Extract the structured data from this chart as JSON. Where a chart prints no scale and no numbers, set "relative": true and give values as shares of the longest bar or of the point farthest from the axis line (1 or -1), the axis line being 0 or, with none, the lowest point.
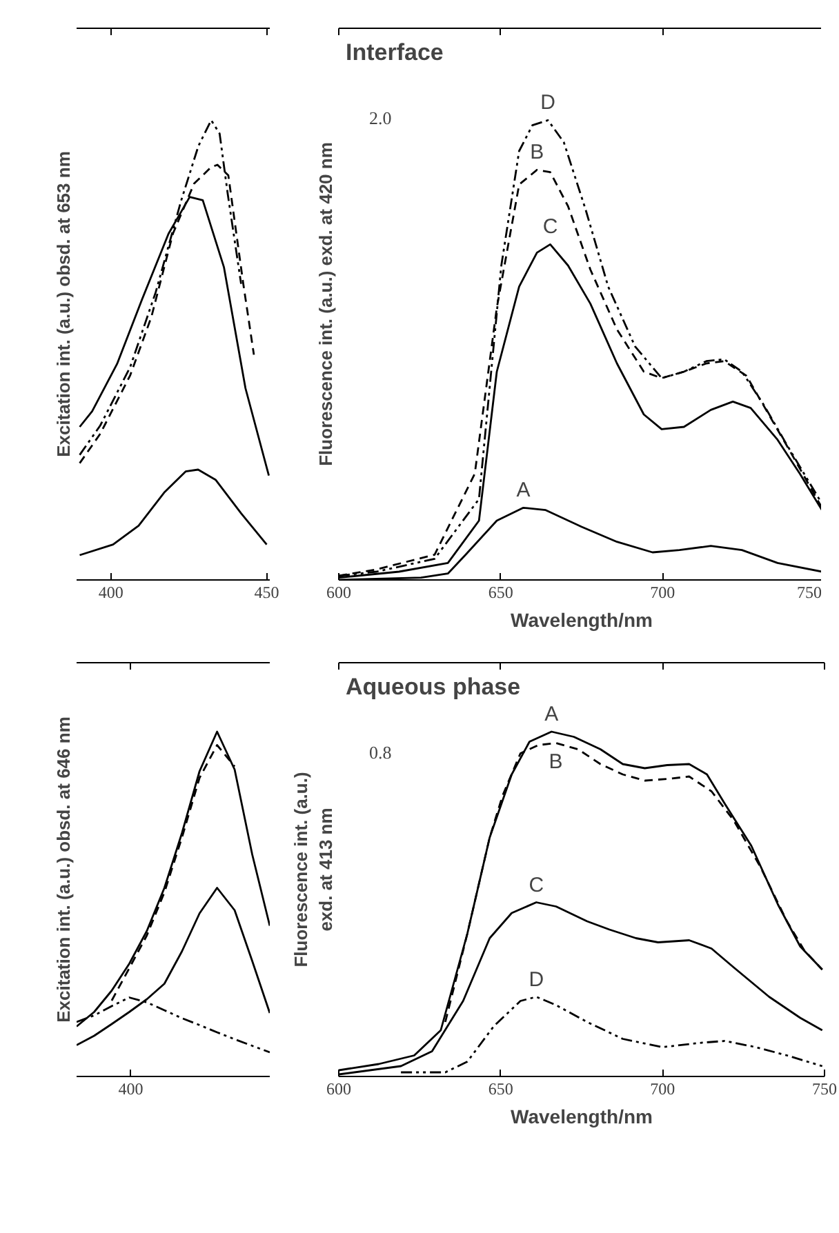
{
  "chart_data": [
    {
      "type": "line",
      "relative": true,
      "ylabel": "Excitation int. (a.u.) obsd. at 653 nm",
      "xlim": [
        389,
        451
      ],
      "xticks": [
        400,
        450
      ],
      "series": [
        {
          "color": "#000000",
          "line_style": "solid",
          "x": [
            390,
            394,
            402,
            410,
            418.5,
            425.3,
            429.5,
            436.3,
            443.2,
            450.7
          ],
          "values": [
            0.333,
            0.367,
            0.47,
            0.61,
            0.753,
            0.833,
            0.826,
            0.68,
            0.417,
            0.227
          ]
        },
        {
          "color": "#000000",
          "line_style": "dashed",
          "x": [
            390,
            396.6,
            406.2,
            413,
            419.9,
            426.7,
            432.2,
            434.2,
            437.7,
            442.5,
            445.9
          ],
          "values": [
            0.254,
            0.318,
            0.445,
            0.572,
            0.753,
            0.862,
            0.898,
            0.903,
            0.88,
            0.644,
            0.49
          ]
        },
        {
          "color": "#000000",
          "line_style": "dashdot",
          "x": [
            390,
            396.6,
            406.2,
            414.4,
            422.6,
            428.1,
            432.2,
            434.9,
            437.5,
            441.8
          ],
          "values": [
            0.272,
            0.336,
            0.463,
            0.626,
            0.826,
            0.944,
            1.0,
            0.971,
            0.84,
            0.644
          ]
        },
        {
          "color": "#000000",
          "line_style": "solid",
          "x": [
            390,
            400.7,
            408.9,
            417.1,
            424,
            428,
            433.6,
            441.8,
            450
          ],
          "values": [
            0.054,
            0.077,
            0.118,
            0.19,
            0.236,
            0.24,
            0.218,
            0.145,
            0.077
          ]
        }
      ]
    },
    {
      "type": "line",
      "relative": true,
      "title": "Interface",
      "xlabel": "Wavelength/nm",
      "ylabel": "Fluorescence int. (a.u.) exd. at 420 nm",
      "xlim": [
        600,
        750
      ],
      "xticks": [
        600,
        650,
        700,
        750
      ],
      "annotations": [
        "2.0"
      ],
      "series": [
        {
          "name": "D",
          "color": "#000000",
          "line_style": "dashdot",
          "x": [
            600,
            611.7,
            629.6,
            643.3,
            650.2,
            655.7,
            659.8,
            664.6,
            669.5,
            676.3,
            683.2,
            691.5,
            699.7,
            706.6,
            713.5,
            719,
            724.5,
            731.4,
            738.2,
            749.2
          ],
          "values": [
            0.009,
            0.018,
            0.046,
            0.176,
            0.684,
            0.933,
            0.989,
            1.0,
            0.952,
            0.804,
            0.638,
            0.508,
            0.439,
            0.453,
            0.476,
            0.48,
            0.453,
            0.379,
            0.296,
            0.166
          ]
        },
        {
          "name": "B",
          "color": "#000000",
          "line_style": "dashed",
          "x": [
            600,
            611.7,
            629.6,
            642,
            648.8,
            655.7,
            661.2,
            665.3,
            670.8,
            677.7,
            685.9,
            694.2,
            699.7,
            706.6,
            713.5,
            719,
            725.9,
            732.7,
            739.6,
            749.2
          ],
          "values": [
            0.009,
            0.023,
            0.055,
            0.231,
            0.592,
            0.86,
            0.892,
            0.887,
            0.813,
            0.675,
            0.545,
            0.453,
            0.439,
            0.453,
            0.471,
            0.476,
            0.444,
            0.361,
            0.277,
            0.157
          ]
        },
        {
          "name": "C",
          "color": "#000000",
          "line_style": "solid",
          "x": [
            600,
            618.6,
            633.7,
            643.3,
            648.8,
            655.7,
            661.2,
            665.3,
            670.8,
            677.7,
            685.9,
            694.2,
            699.7,
            706.6,
            714.9,
            721.7,
            727.2,
            735.5,
            742.4,
            749.2
          ],
          "values": [
            0.005,
            0.018,
            0.037,
            0.129,
            0.453,
            0.638,
            0.712,
            0.73,
            0.684,
            0.601,
            0.471,
            0.36,
            0.328,
            0.333,
            0.37,
            0.388,
            0.374,
            0.305,
            0.231,
            0.152
          ]
        },
        {
          "name": "A",
          "color": "#000000",
          "line_style": "solid",
          "x": [
            600,
            625.4,
            633.7,
            639.2,
            648.8,
            657,
            663.9,
            674.9,
            685.9,
            696.9,
            705.2,
            714.9,
            724.5,
            735.5,
            749.2
          ],
          "values": [
            0,
            0.005,
            0.014,
            0.055,
            0.129,
            0.157,
            0.152,
            0.116,
            0.083,
            0.06,
            0.065,
            0.074,
            0.065,
            0.037,
            0.018
          ]
        }
      ]
    },
    {
      "type": "line",
      "relative": true,
      "ylabel": "Excitation int. (a.u.) obsd. at 646 nm",
      "categories": [
        null,
        null,
        null,
        null,
        null,
        null,
        null,
        null,
        null,
        null,
        null,
        null
      ],
      "annotations": [
        "400"
      ],
      "series": [
        {
          "color": "#000000",
          "line_style": "solid",
          "values": [
            0.145,
            0.187,
            0.249,
            0.327,
            0.422,
            0.547,
            0.706,
            0.885,
            1.0,
            0.89,
            0.644,
            0.437
          ]
        },
        {
          "color": "#000000",
          "line_style": "dashed",
          "values": [
            null,
            null,
            0.22,
            0.314,
            0.409,
            0.534,
            0.693,
            0.866,
            0.961,
            0.899,
            null,
            null
          ]
        },
        {
          "color": "#000000",
          "line_style": "solid",
          "values": [
            0.091,
            0.118,
            0.152,
            0.187,
            0.224,
            0.269,
            0.363,
            0.473,
            0.547,
            0.482,
            0.335,
            0.184
          ]
        },
        {
          "color": "#000000",
          "line_style": "dashdot",
          "values": [
            0.158,
            0.177,
            0.204,
            0.229,
            0.215,
            0.192,
            0.169,
            0.149,
            0.128,
            0.108,
            0.089,
            0.07
          ]
        }
      ]
    },
    {
      "type": "line",
      "relative": true,
      "title": "Aqueous phase",
      "xlabel": "Wavelength/nm",
      "ylabel": "Fluorescence int. (a.u.)\nexd. at 413 nm",
      "xlim": [
        600,
        750
      ],
      "xticks": [
        600,
        650,
        700,
        750
      ],
      "annotations": [
        "0.8"
      ],
      "series": [
        {
          "name": "A",
          "color": "#000000",
          "line_style": "solid",
          "x": [
            600,
            612.3,
            623.3,
            631.5,
            639.7,
            646.6,
            653.4,
            658.9,
            665.7,
            672.6,
            680.8,
            687.7,
            694.5,
            701.4,
            708.2,
            713.7,
            719.2,
            727.4,
            735.6,
            742.5,
            749.3
          ],
          "values": [
            0.018,
            0.036,
            0.061,
            0.134,
            0.414,
            0.693,
            0.876,
            0.971,
            1.0,
            0.985,
            0.949,
            0.906,
            0.894,
            0.903,
            0.906,
            0.876,
            0.791,
            0.669,
            0.499,
            0.377,
            0.31
          ]
        },
        {
          "name": "B",
          "color": "#000000",
          "line_style": "dashed",
          "x": [
            632.9,
            639.7,
            646.6,
            650.6,
            656.1,
            661.6,
            667,
            673.9,
            680.8,
            687.7,
            694.5,
            702.7,
            708.2,
            715.1,
            722,
            730.2,
            738.4,
            743.8,
            749.3
          ],
          "values": [
            0.158,
            0.414,
            0.693,
            0.815,
            0.937,
            0.961,
            0.967,
            0.949,
            0.906,
            0.876,
            0.858,
            0.864,
            0.87,
            0.827,
            0.742,
            0.608,
            0.45,
            0.365,
            0.31
          ]
        },
        {
          "name": "C",
          "color": "#000000",
          "line_style": "solid",
          "x": [
            600,
            619.2,
            628.8,
            638.4,
            646.6,
            653.4,
            661,
            667.1,
            676.7,
            683.6,
            691.8,
            698.6,
            708.2,
            715.1,
            722,
            732.9,
            742.5,
            749.3
          ],
          "values": [
            0.006,
            0.03,
            0.073,
            0.219,
            0.401,
            0.474,
            0.505,
            0.493,
            0.45,
            0.426,
            0.401,
            0.389,
            0.395,
            0.371,
            0.316,
            0.231,
            0.17,
            0.134
          ]
        },
        {
          "name": "D",
          "color": "#000000",
          "line_style": "dashdot",
          "x": [
            619.2,
            632.9,
            639.7,
            647.9,
            656.1,
            661,
            667.1,
            676.7,
            687.7,
            700,
            711,
            719.2,
            728.8,
            738.4,
            749.3
          ],
          "values": [
            0.012,
            0.012,
            0.043,
            0.146,
            0.219,
            0.231,
            0.207,
            0.158,
            0.109,
            0.085,
            0.097,
            0.103,
            0.085,
            0.061,
            0.03
          ]
        }
      ]
    }
  ]
}
